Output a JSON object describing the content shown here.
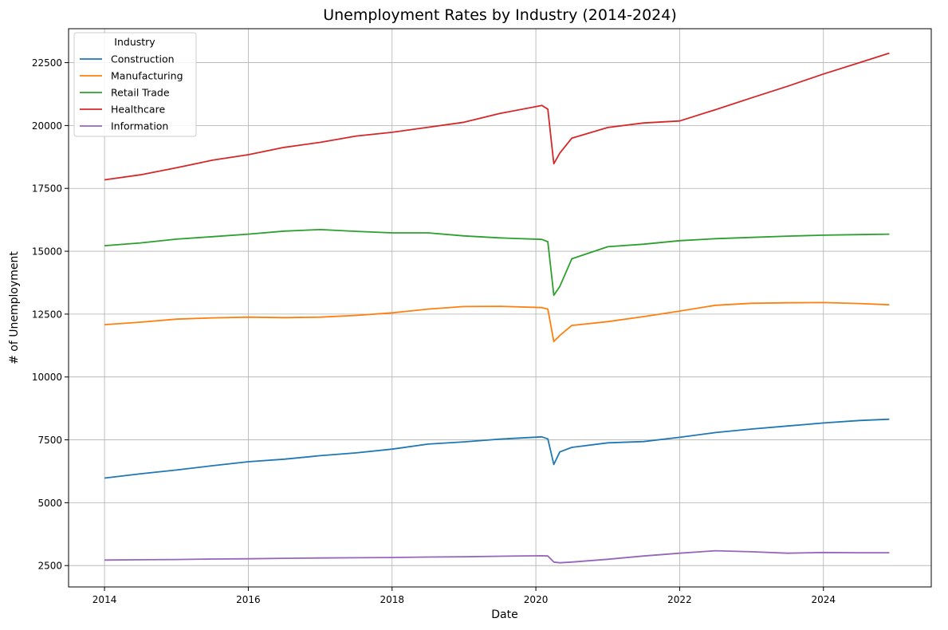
{
  "chart_data": {
    "type": "line",
    "title": "Unemployment Rates by Industry (2014-2024)",
    "xlabel": "Date",
    "ylabel": "# of Unemployment",
    "xlim": [
      "2013-07",
      "2025-07"
    ],
    "ylim": [
      1650,
      23850
    ],
    "x_ticks": [
      "2014",
      "2016",
      "2018",
      "2020",
      "2022",
      "2024"
    ],
    "y_ticks": [
      2500,
      5000,
      7500,
      10000,
      12500,
      15000,
      17500,
      20000,
      22500
    ],
    "grid": true,
    "legend": {
      "title": "Industry",
      "position": "top-left"
    },
    "series": [
      {
        "name": "Construction",
        "color": "#1f77b4",
        "points": [
          [
            "2014-01",
            5980
          ],
          [
            "2014-07",
            6150
          ],
          [
            "2015-01",
            6300
          ],
          [
            "2015-07",
            6470
          ],
          [
            "2016-01",
            6630
          ],
          [
            "2016-07",
            6730
          ],
          [
            "2017-01",
            6870
          ],
          [
            "2017-07",
            6980
          ],
          [
            "2018-01",
            7130
          ],
          [
            "2018-07",
            7330
          ],
          [
            "2019-01",
            7420
          ],
          [
            "2019-07",
            7530
          ],
          [
            "2020-02",
            7620
          ],
          [
            "2020-03",
            7540
          ],
          [
            "2020-04",
            6520
          ],
          [
            "2020-05",
            7020
          ],
          [
            "2020-07",
            7200
          ],
          [
            "2021-01",
            7380
          ],
          [
            "2021-07",
            7430
          ],
          [
            "2022-01",
            7600
          ],
          [
            "2022-07",
            7790
          ],
          [
            "2023-01",
            7930
          ],
          [
            "2023-07",
            8050
          ],
          [
            "2024-01",
            8170
          ],
          [
            "2024-07",
            8270
          ],
          [
            "2024-12",
            8320
          ]
        ]
      },
      {
        "name": "Manufacturing",
        "color": "#ff7f0e",
        "points": [
          [
            "2014-01",
            12080
          ],
          [
            "2014-07",
            12180
          ],
          [
            "2015-01",
            12300
          ],
          [
            "2015-07",
            12350
          ],
          [
            "2016-01",
            12380
          ],
          [
            "2016-07",
            12360
          ],
          [
            "2017-01",
            12380
          ],
          [
            "2017-07",
            12450
          ],
          [
            "2018-01",
            12550
          ],
          [
            "2018-07",
            12700
          ],
          [
            "2019-01",
            12800
          ],
          [
            "2019-07",
            12810
          ],
          [
            "2020-02",
            12760
          ],
          [
            "2020-03",
            12700
          ],
          [
            "2020-04",
            11410
          ],
          [
            "2020-05",
            11650
          ],
          [
            "2020-07",
            12050
          ],
          [
            "2021-01",
            12200
          ],
          [
            "2021-07",
            12400
          ],
          [
            "2022-01",
            12620
          ],
          [
            "2022-07",
            12850
          ],
          [
            "2023-01",
            12930
          ],
          [
            "2023-07",
            12950
          ],
          [
            "2024-01",
            12960
          ],
          [
            "2024-07",
            12920
          ],
          [
            "2024-12",
            12870
          ]
        ]
      },
      {
        "name": "Retail Trade",
        "color": "#2ca02c",
        "points": [
          [
            "2014-01",
            15220
          ],
          [
            "2014-07",
            15330
          ],
          [
            "2015-01",
            15480
          ],
          [
            "2015-07",
            15580
          ],
          [
            "2016-01",
            15680
          ],
          [
            "2016-07",
            15800
          ],
          [
            "2017-01",
            15860
          ],
          [
            "2017-07",
            15790
          ],
          [
            "2018-01",
            15730
          ],
          [
            "2018-07",
            15730
          ],
          [
            "2019-01",
            15610
          ],
          [
            "2019-07",
            15530
          ],
          [
            "2020-02",
            15470
          ],
          [
            "2020-03",
            15380
          ],
          [
            "2020-04",
            13250
          ],
          [
            "2020-05",
            13600
          ],
          [
            "2020-07",
            14700
          ],
          [
            "2021-01",
            15180
          ],
          [
            "2021-07",
            15280
          ],
          [
            "2022-01",
            15420
          ],
          [
            "2022-07",
            15500
          ],
          [
            "2023-01",
            15550
          ],
          [
            "2023-07",
            15600
          ],
          [
            "2024-01",
            15640
          ],
          [
            "2024-07",
            15660
          ],
          [
            "2024-12",
            15680
          ]
        ]
      },
      {
        "name": "Healthcare",
        "color": "#d62728",
        "points": [
          [
            "2014-01",
            17840
          ],
          [
            "2014-07",
            18040
          ],
          [
            "2015-01",
            18320
          ],
          [
            "2015-07",
            18620
          ],
          [
            "2016-01",
            18840
          ],
          [
            "2016-07",
            19130
          ],
          [
            "2017-01",
            19330
          ],
          [
            "2017-07",
            19580
          ],
          [
            "2018-01",
            19730
          ],
          [
            "2018-07",
            19930
          ],
          [
            "2019-01",
            20130
          ],
          [
            "2019-07",
            20480
          ],
          [
            "2020-02",
            20800
          ],
          [
            "2020-03",
            20650
          ],
          [
            "2020-04",
            18480
          ],
          [
            "2020-05",
            18900
          ],
          [
            "2020-07",
            19500
          ],
          [
            "2021-01",
            19920
          ],
          [
            "2021-07",
            20100
          ],
          [
            "2022-01",
            20180
          ],
          [
            "2022-07",
            20630
          ],
          [
            "2023-01",
            21100
          ],
          [
            "2023-07",
            21560
          ],
          [
            "2024-01",
            22050
          ],
          [
            "2024-07",
            22500
          ],
          [
            "2024-12",
            22880
          ]
        ]
      },
      {
        "name": "Information",
        "color": "#9467bd",
        "points": [
          [
            "2014-01",
            2720
          ],
          [
            "2014-07",
            2730
          ],
          [
            "2015-01",
            2740
          ],
          [
            "2015-07",
            2760
          ],
          [
            "2016-01",
            2770
          ],
          [
            "2016-07",
            2790
          ],
          [
            "2017-01",
            2800
          ],
          [
            "2017-07",
            2810
          ],
          [
            "2018-01",
            2820
          ],
          [
            "2018-07",
            2840
          ],
          [
            "2019-01",
            2850
          ],
          [
            "2019-07",
            2870
          ],
          [
            "2020-02",
            2890
          ],
          [
            "2020-03",
            2880
          ],
          [
            "2020-04",
            2640
          ],
          [
            "2020-05",
            2610
          ],
          [
            "2020-07",
            2640
          ],
          [
            "2021-01",
            2750
          ],
          [
            "2021-07",
            2880
          ],
          [
            "2022-01",
            2990
          ],
          [
            "2022-07",
            3090
          ],
          [
            "2023-01",
            3050
          ],
          [
            "2023-07",
            2990
          ],
          [
            "2024-01",
            3020
          ],
          [
            "2024-07",
            3010
          ],
          [
            "2024-12",
            3010
          ]
        ]
      }
    ]
  }
}
